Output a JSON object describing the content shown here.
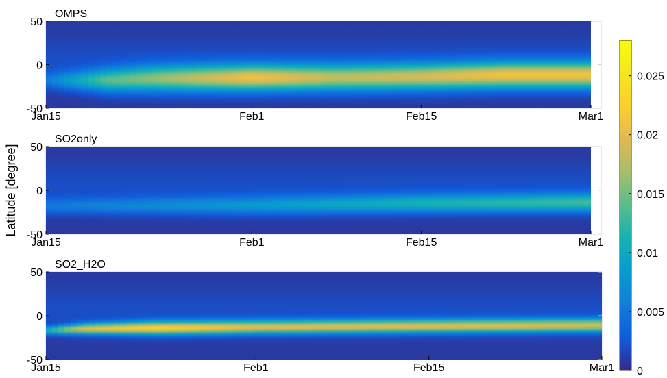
{
  "chart_data": {
    "type": "heatmap",
    "ylabel": "Latitude [degree]",
    "x_ticks": [
      "Jan15",
      "Feb1",
      "Feb15",
      "Mar1"
    ],
    "x_tick_dates": [
      "2022-01-15",
      "2022-02-01",
      "2022-02-15",
      "2022-03-01"
    ],
    "y_ticks": [
      50,
      0,
      -50
    ],
    "ylim": [
      -50,
      50
    ],
    "colormap": "parula",
    "colorbar": {
      "clim": [
        0,
        0.028
      ],
      "ticks": [
        0,
        0.005,
        0.01,
        0.015,
        0.02,
        0.025
      ],
      "tick_labels": [
        "0",
        "0.005",
        "0.01",
        "0.015",
        "0.02",
        "0.025"
      ]
    },
    "panels": [
      {
        "title": "OMPS",
        "xlim": [
          "2022-01-15",
          "2022-03-01"
        ],
        "plume_profile": [
          {
            "date": "2022-01-15",
            "center": -18,
            "width": 6,
            "peak": 0.004
          },
          {
            "date": "2022-01-20",
            "center": -18,
            "width": 9,
            "peak": 0.013
          },
          {
            "date": "2022-01-24",
            "center": -16,
            "width": 10,
            "peak": 0.015
          },
          {
            "date": "2022-02-01",
            "center": -15,
            "width": 10,
            "peak": 0.02
          },
          {
            "date": "2022-02-08",
            "center": -15,
            "width": 10,
            "peak": 0.017
          },
          {
            "date": "2022-02-15",
            "center": -14,
            "width": 10,
            "peak": 0.018
          },
          {
            "date": "2022-02-22",
            "center": -12,
            "width": 10,
            "peak": 0.02
          },
          {
            "date": "2022-03-01",
            "center": -12,
            "width": 10,
            "peak": 0.02
          }
        ]
      },
      {
        "title": "SO2only",
        "xlim": [
          "2022-01-15",
          "2022-03-01"
        ],
        "plume_profile": [
          {
            "date": "2022-01-15",
            "center": -18,
            "width": 6,
            "peak": 0.004
          },
          {
            "date": "2022-02-01",
            "center": -17,
            "width": 7,
            "peak": 0.007
          },
          {
            "date": "2022-02-15",
            "center": -15,
            "width": 7,
            "peak": 0.01
          },
          {
            "date": "2022-03-01",
            "center": -14,
            "width": 7,
            "peak": 0.012
          }
        ]
      },
      {
        "title": "SO2_H2O",
        "xlim": [
          "2022-01-15",
          "2022-03-01"
        ],
        "plume_profile": [
          {
            "date": "2022-01-15",
            "center": -17,
            "width": 3,
            "peak": 0.01
          },
          {
            "date": "2022-01-18",
            "center": -15,
            "width": 4,
            "peak": 0.019
          },
          {
            "date": "2022-01-24",
            "center": -14,
            "width": 5,
            "peak": 0.022
          },
          {
            "date": "2022-02-01",
            "center": -13,
            "width": 5,
            "peak": 0.019
          },
          {
            "date": "2022-02-15",
            "center": -12,
            "width": 5,
            "peak": 0.019
          },
          {
            "date": "2022-03-01",
            "center": -11,
            "width": 5,
            "peak": 0.018
          }
        ]
      }
    ]
  }
}
